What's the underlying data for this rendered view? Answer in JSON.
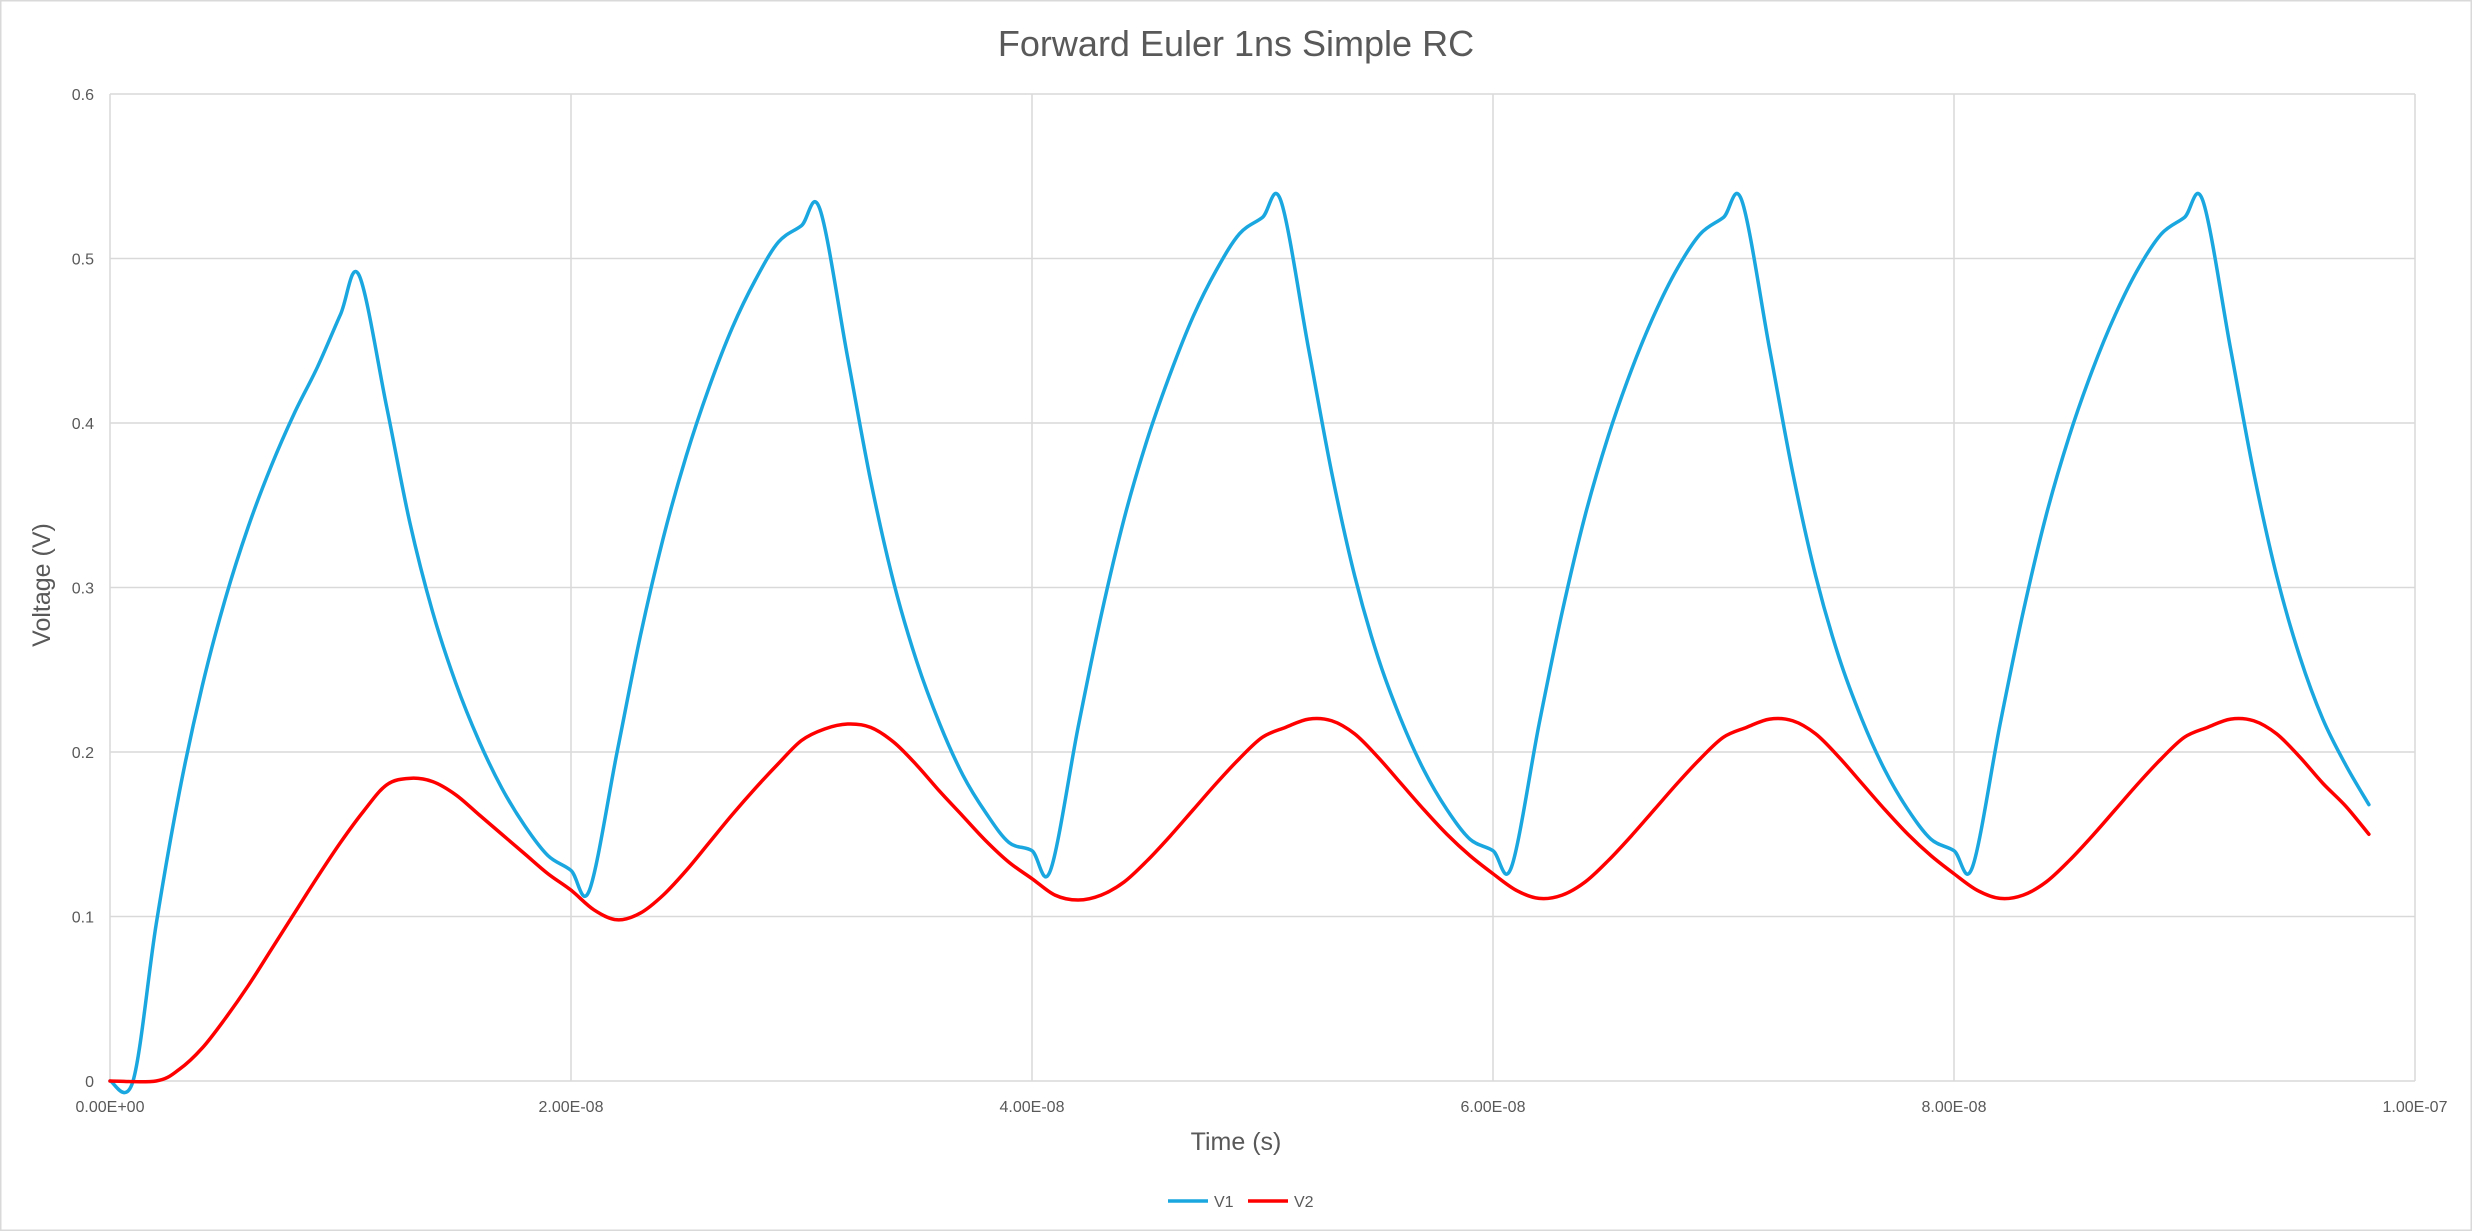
{
  "chart_data": {
    "type": "line",
    "title": "Forward Euler 1ns Simple RC",
    "xlabel": "Time (s)",
    "ylabel": "Voltage (V)",
    "xlim": [
      0,
      1e-07
    ],
    "ylim": [
      0,
      0.6
    ],
    "x_ticks": [
      0,
      2e-08,
      4e-08,
      6e-08,
      8e-08,
      1e-07
    ],
    "x_tick_labels": [
      "0.00E+00",
      "2.00E-08",
      "4.00E-08",
      "6.00E-08",
      "8.00E-08",
      "1.00E-07"
    ],
    "y_ticks": [
      0,
      0.1,
      0.2,
      0.3,
      0.4,
      0.5,
      0.6
    ],
    "y_tick_labels": [
      "0",
      "0.1",
      "0.2",
      "0.3",
      "0.4",
      "0.5",
      "0.6"
    ],
    "grid": true,
    "legend_position": "bottom",
    "series": [
      {
        "name": "V1",
        "color": "#1aa7e0",
        "points": [
          [
            0,
            0
          ],
          [
            1e-09,
            0
          ],
          [
            2e-09,
            0.095
          ],
          [
            3e-09,
            0.175
          ],
          [
            4e-09,
            0.24
          ],
          [
            5e-09,
            0.293
          ],
          [
            6e-09,
            0.337
          ],
          [
            7e-09,
            0.374
          ],
          [
            8e-09,
            0.406
          ],
          [
            9e-09,
            0.434
          ],
          [
            1e-08,
            0.466
          ],
          [
            1.08e-08,
            0.49
          ],
          [
            1.2e-08,
            0.41
          ],
          [
            1.3e-08,
            0.34
          ],
          [
            1.4e-08,
            0.285
          ],
          [
            1.5e-08,
            0.242
          ],
          [
            1.6e-08,
            0.207
          ],
          [
            1.7e-08,
            0.178
          ],
          [
            1.8e-08,
            0.155
          ],
          [
            1.9e-08,
            0.137
          ],
          [
            2e-08,
            0.128
          ],
          [
            2.08e-08,
            0.116
          ],
          [
            2.2e-08,
            0.2
          ],
          [
            2.3e-08,
            0.27
          ],
          [
            2.4e-08,
            0.33
          ],
          [
            2.5e-08,
            0.38
          ],
          [
            2.6e-08,
            0.422
          ],
          [
            2.7e-08,
            0.458
          ],
          [
            2.8e-08,
            0.487
          ],
          [
            2.9e-08,
            0.51
          ],
          [
            3e-08,
            0.52
          ],
          [
            3.08e-08,
            0.53
          ],
          [
            3.2e-08,
            0.44
          ],
          [
            3.3e-08,
            0.365
          ],
          [
            3.4e-08,
            0.303
          ],
          [
            3.5e-08,
            0.255
          ],
          [
            3.6e-08,
            0.217
          ],
          [
            3.7e-08,
            0.186
          ],
          [
            3.8e-08,
            0.163
          ],
          [
            3.9e-08,
            0.145
          ],
          [
            4e-08,
            0.14
          ],
          [
            4.08e-08,
            0.128
          ],
          [
            4.2e-08,
            0.215
          ],
          [
            4.3e-08,
            0.283
          ],
          [
            4.4e-08,
            0.342
          ],
          [
            4.5e-08,
            0.39
          ],
          [
            4.6e-08,
            0.43
          ],
          [
            4.7e-08,
            0.465
          ],
          [
            4.8e-08,
            0.493
          ],
          [
            4.9e-08,
            0.515
          ],
          [
            5e-08,
            0.525
          ],
          [
            5.08e-08,
            0.535
          ],
          [
            5.2e-08,
            0.445
          ],
          [
            5.3e-08,
            0.37
          ],
          [
            5.4e-08,
            0.307
          ],
          [
            5.5e-08,
            0.258
          ],
          [
            5.6e-08,
            0.22
          ],
          [
            5.7e-08,
            0.189
          ],
          [
            5.8e-08,
            0.165
          ],
          [
            5.9e-08,
            0.147
          ],
          [
            6e-08,
            0.14
          ],
          [
            6.08e-08,
            0.13
          ],
          [
            6.2e-08,
            0.217
          ],
          [
            6.3e-08,
            0.285
          ],
          [
            6.4e-08,
            0.344
          ],
          [
            6.5e-08,
            0.392
          ],
          [
            6.6e-08,
            0.432
          ],
          [
            6.7e-08,
            0.466
          ],
          [
            6.8e-08,
            0.494
          ],
          [
            6.9e-08,
            0.515
          ],
          [
            7e-08,
            0.525
          ],
          [
            7.08e-08,
            0.535
          ],
          [
            7.2e-08,
            0.445
          ],
          [
            7.3e-08,
            0.37
          ],
          [
            7.4e-08,
            0.307
          ],
          [
            7.5e-08,
            0.258
          ],
          [
            7.6e-08,
            0.22
          ],
          [
            7.7e-08,
            0.189
          ],
          [
            7.8e-08,
            0.165
          ],
          [
            7.9e-08,
            0.147
          ],
          [
            8e-08,
            0.14
          ],
          [
            8.08e-08,
            0.13
          ],
          [
            8.2e-08,
            0.217
          ],
          [
            8.3e-08,
            0.285
          ],
          [
            8.4e-08,
            0.344
          ],
          [
            8.5e-08,
            0.392
          ],
          [
            8.6e-08,
            0.432
          ],
          [
            8.7e-08,
            0.466
          ],
          [
            8.8e-08,
            0.494
          ],
          [
            8.9e-08,
            0.515
          ],
          [
            9e-08,
            0.525
          ],
          [
            9.08e-08,
            0.535
          ],
          [
            9.2e-08,
            0.445
          ],
          [
            9.3e-08,
            0.37
          ],
          [
            9.4e-08,
            0.307
          ],
          [
            9.5e-08,
            0.258
          ],
          [
            9.6e-08,
            0.22
          ],
          [
            9.7e-08,
            0.192
          ],
          [
            9.8e-08,
            0.168
          ]
        ]
      },
      {
        "name": "V2",
        "color": "#ff0000",
        "points": [
          [
            0,
            0
          ],
          [
            2e-09,
            0
          ],
          [
            3e-09,
            0.007
          ],
          [
            4e-09,
            0.02
          ],
          [
            5e-09,
            0.038
          ],
          [
            6e-09,
            0.058
          ],
          [
            7e-09,
            0.08
          ],
          [
            8e-09,
            0.102
          ],
          [
            9e-09,
            0.124
          ],
          [
            1e-08,
            0.145
          ],
          [
            1.1e-08,
            0.164
          ],
          [
            1.2e-08,
            0.18
          ],
          [
            1.3e-08,
            0.184
          ],
          [
            1.4e-08,
            0.182
          ],
          [
            1.5e-08,
            0.174
          ],
          [
            1.6e-08,
            0.162
          ],
          [
            1.7e-08,
            0.15
          ],
          [
            1.8e-08,
            0.138
          ],
          [
            1.9e-08,
            0.126
          ],
          [
            2e-08,
            0.116
          ],
          [
            2.1e-08,
            0.104
          ],
          [
            2.2e-08,
            0.098
          ],
          [
            2.3e-08,
            0.102
          ],
          [
            2.4e-08,
            0.113
          ],
          [
            2.5e-08,
            0.128
          ],
          [
            2.6e-08,
            0.145
          ],
          [
            2.7e-08,
            0.162
          ],
          [
            2.8e-08,
            0.178
          ],
          [
            2.9e-08,
            0.193
          ],
          [
            3e-08,
            0.207
          ],
          [
            3.1e-08,
            0.214
          ],
          [
            3.2e-08,
            0.217
          ],
          [
            3.3e-08,
            0.215
          ],
          [
            3.4e-08,
            0.206
          ],
          [
            3.5e-08,
            0.192
          ],
          [
            3.6e-08,
            0.176
          ],
          [
            3.7e-08,
            0.161
          ],
          [
            3.8e-08,
            0.146
          ],
          [
            3.9e-08,
            0.133
          ],
          [
            4e-08,
            0.123
          ],
          [
            4.1e-08,
            0.113
          ],
          [
            4.2e-08,
            0.11
          ],
          [
            4.3e-08,
            0.113
          ],
          [
            4.4e-08,
            0.121
          ],
          [
            4.5e-08,
            0.134
          ],
          [
            4.6e-08,
            0.149
          ],
          [
            4.7e-08,
            0.165
          ],
          [
            4.8e-08,
            0.181
          ],
          [
            4.9e-08,
            0.196
          ],
          [
            5e-08,
            0.209
          ],
          [
            5.1e-08,
            0.215
          ],
          [
            5.2e-08,
            0.22
          ],
          [
            5.3e-08,
            0.219
          ],
          [
            5.4e-08,
            0.211
          ],
          [
            5.5e-08,
            0.197
          ],
          [
            5.6e-08,
            0.181
          ],
          [
            5.7e-08,
            0.165
          ],
          [
            5.8e-08,
            0.15
          ],
          [
            5.9e-08,
            0.137
          ],
          [
            6e-08,
            0.126
          ],
          [
            6.1e-08,
            0.116
          ],
          [
            6.2e-08,
            0.111
          ],
          [
            6.3e-08,
            0.113
          ],
          [
            6.4e-08,
            0.121
          ],
          [
            6.5e-08,
            0.134
          ],
          [
            6.6e-08,
            0.149
          ],
          [
            6.7e-08,
            0.165
          ],
          [
            6.8e-08,
            0.181
          ],
          [
            6.9e-08,
            0.196
          ],
          [
            7e-08,
            0.209
          ],
          [
            7.1e-08,
            0.215
          ],
          [
            7.2e-08,
            0.22
          ],
          [
            7.3e-08,
            0.219
          ],
          [
            7.4e-08,
            0.211
          ],
          [
            7.5e-08,
            0.197
          ],
          [
            7.6e-08,
            0.181
          ],
          [
            7.7e-08,
            0.165
          ],
          [
            7.8e-08,
            0.15
          ],
          [
            7.9e-08,
            0.137
          ],
          [
            8e-08,
            0.126
          ],
          [
            8.1e-08,
            0.116
          ],
          [
            8.2e-08,
            0.111
          ],
          [
            8.3e-08,
            0.113
          ],
          [
            8.4e-08,
            0.121
          ],
          [
            8.5e-08,
            0.134
          ],
          [
            8.6e-08,
            0.149
          ],
          [
            8.7e-08,
            0.165
          ],
          [
            8.8e-08,
            0.181
          ],
          [
            8.9e-08,
            0.196
          ],
          [
            9e-08,
            0.209
          ],
          [
            9.1e-08,
            0.215
          ],
          [
            9.2e-08,
            0.22
          ],
          [
            9.3e-08,
            0.219
          ],
          [
            9.4e-08,
            0.211
          ],
          [
            9.5e-08,
            0.197
          ],
          [
            9.6e-08,
            0.181
          ],
          [
            9.7e-08,
            0.167
          ],
          [
            9.8e-08,
            0.15
          ]
        ]
      }
    ]
  }
}
